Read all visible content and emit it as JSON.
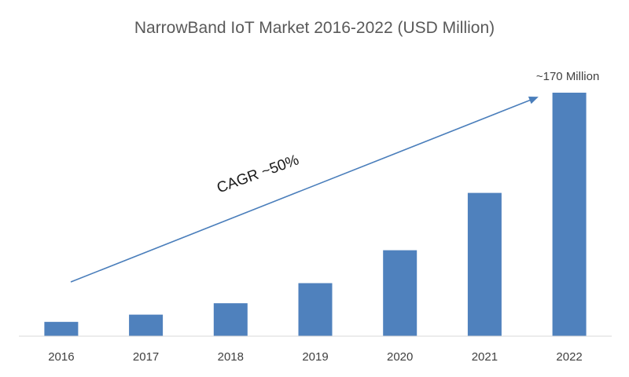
{
  "chart_data": {
    "type": "bar",
    "title": "NarrowBand IoT Market 2016-2022  (USD Million)",
    "xlabel": "",
    "ylabel": "",
    "categories": [
      "2016",
      "2017",
      "2018",
      "2019",
      "2020",
      "2021",
      "2022"
    ],
    "values": [
      10,
      15,
      23,
      37,
      60,
      100,
      170
    ],
    "ylim": [
      0,
      170
    ],
    "grid": false,
    "legend": "none",
    "bar_color": "#4f81bd",
    "data_labels": [
      {
        "category": "2022",
        "text": "~170 Million"
      }
    ],
    "annotations": [
      {
        "text": "CAGR ~50%",
        "kind": "arrow",
        "color": "#4a7ebb"
      }
    ]
  }
}
